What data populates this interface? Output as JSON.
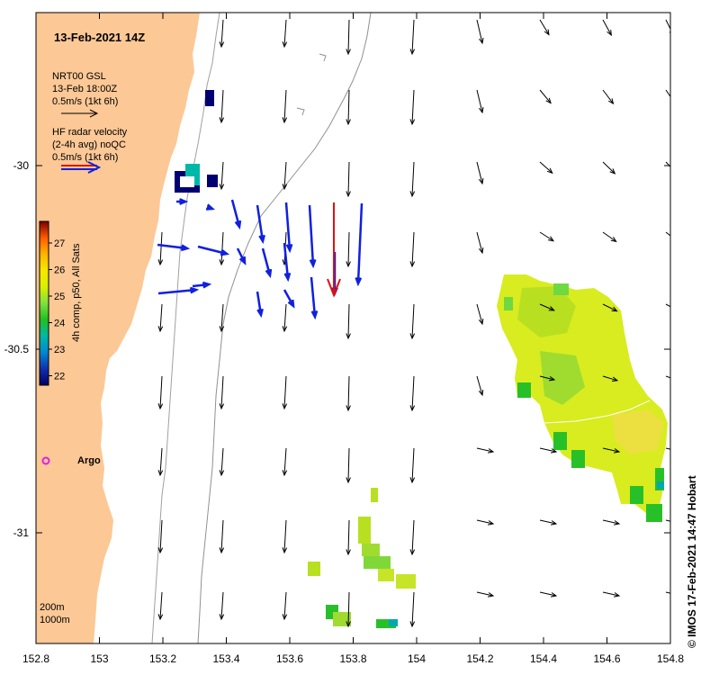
{
  "title": "13-Feb-2021 14Z",
  "legend": {
    "model_name": "NRT00 GSL",
    "model_time": "13-Feb 18:00Z",
    "model_scale": "0.5m/s (1kt 6h)",
    "radar_name": "HF radar velocity",
    "radar_avg": "(2-4h avg) noQC",
    "radar_scale": "0.5m/s (1kt 6h)"
  },
  "colorbar": {
    "label": "4h comp, p50, All Sats",
    "ticks": [
      "27",
      "26",
      "25",
      "24",
      "23",
      "22"
    ],
    "colors": [
      "#7a0000",
      "#ff5a00",
      "#ffb400",
      "#f8e800",
      "#d8f000",
      "#80e040",
      "#20c020",
      "#00b8a8",
      "#0088d0",
      "#1030b0",
      "#000060"
    ]
  },
  "x_axis": {
    "ticks": [
      "152.8",
      "153",
      "153.2",
      "153.4",
      "153.6",
      "153.8",
      "154",
      "154.2",
      "154.4",
      "154.6",
      "154.8"
    ]
  },
  "y_axis": {
    "ticks": [
      "-30",
      "-30.5",
      "-31"
    ]
  },
  "argo_label": "Argo",
  "depth_labels": {
    "shallow": "200m",
    "deep": "1000m"
  },
  "footer": "© IMOS 17-Feb-2021 14:47 Hobart",
  "colors": {
    "land": "#fcc896",
    "model_arrow": "#000000",
    "radar_arrow": "#1020e0",
    "highlight_arrow": "#e01010",
    "argo": "#e020e0"
  }
}
